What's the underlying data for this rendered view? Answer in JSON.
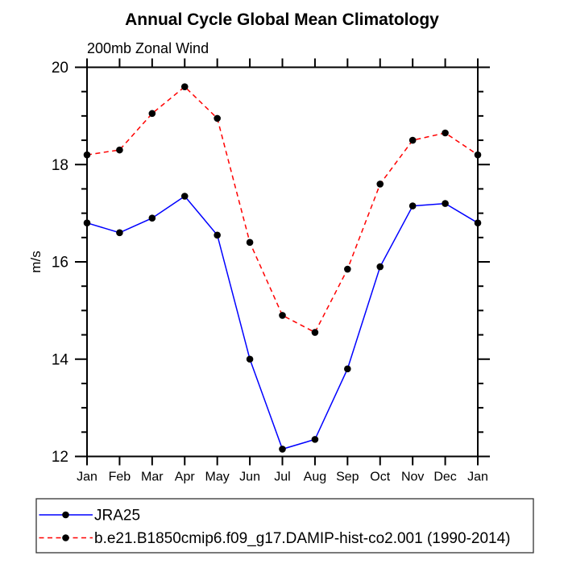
{
  "title": "Annual Cycle Global Mean Climatology",
  "subtitle": "200mb Zonal Wind",
  "chart_data": {
    "type": "line",
    "title": "Annual Cycle Global Mean Climatology",
    "subtitle": "200mb Zonal Wind",
    "xlabel": "",
    "ylabel": "m/s",
    "categories": [
      "Jan",
      "Feb",
      "Mar",
      "Apr",
      "May",
      "Jun",
      "Jul",
      "Aug",
      "Sep",
      "Oct",
      "Nov",
      "Dec",
      "Jan"
    ],
    "ylim": [
      12,
      20
    ],
    "y_major_step": 2,
    "y_minor_step": 0.5,
    "y_major_ticks": [
      12,
      14,
      16,
      18,
      20
    ],
    "grid": false,
    "legend_position": "bottom-left-outside",
    "axis_color": "#000000",
    "marker": "filled-circle",
    "marker_color": "#000000",
    "series": [
      {
        "name": "JRA25",
        "color": "#0000ff",
        "line_style": "solid",
        "values": [
          16.8,
          16.6,
          16.9,
          17.35,
          16.55,
          14.0,
          12.15,
          12.35,
          13.8,
          15.9,
          17.15,
          17.2,
          16.8
        ]
      },
      {
        "name": "b.e21.B1850cmip6.f09_g17.DAMIP-hist-co2.001 (1990-2014)",
        "color": "#ff0000",
        "line_style": "dashed",
        "values": [
          18.2,
          18.3,
          19.05,
          19.6,
          18.95,
          16.4,
          14.9,
          14.55,
          15.85,
          17.6,
          18.5,
          18.65,
          18.2
        ]
      }
    ]
  }
}
